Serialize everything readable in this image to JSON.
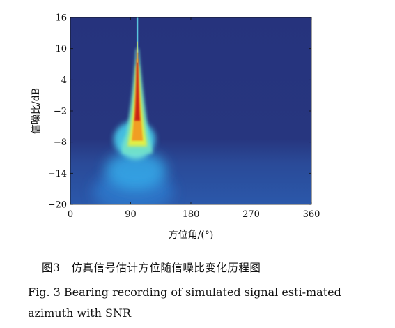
{
  "chart_data": {
    "type": "heatmap",
    "xlabel": "方位角/(°)",
    "ylabel": "信噪比/dB",
    "xlim": [
      0,
      360
    ],
    "ylim": [
      -20,
      16
    ],
    "x_ticks": [
      0,
      90,
      180,
      270,
      360
    ],
    "x_tick_labels": [
      "0",
      "90",
      "180",
      "270",
      "360"
    ],
    "y_ticks": [
      -20,
      -14,
      -8,
      -2,
      4,
      10,
      16
    ],
    "y_tick_labels": [
      "−20",
      "−14",
      "−8",
      "−2",
      "4",
      "10",
      "16"
    ],
    "colormap": "jet",
    "background_color": "#27357f",
    "ridge": {
      "azimuth_deg": 100,
      "peak_color": "#c81e14",
      "description_note": "bright ridge at true azimuth; broadens and spreads as SNR decreases"
    }
  },
  "captions": {
    "figure_cn": "图3　仿真信号估计方位随信噪比变化历程图",
    "figure_en": "Fig. 3  Bearing recording of simulated signal esti-mated azimuth with SNR"
  }
}
